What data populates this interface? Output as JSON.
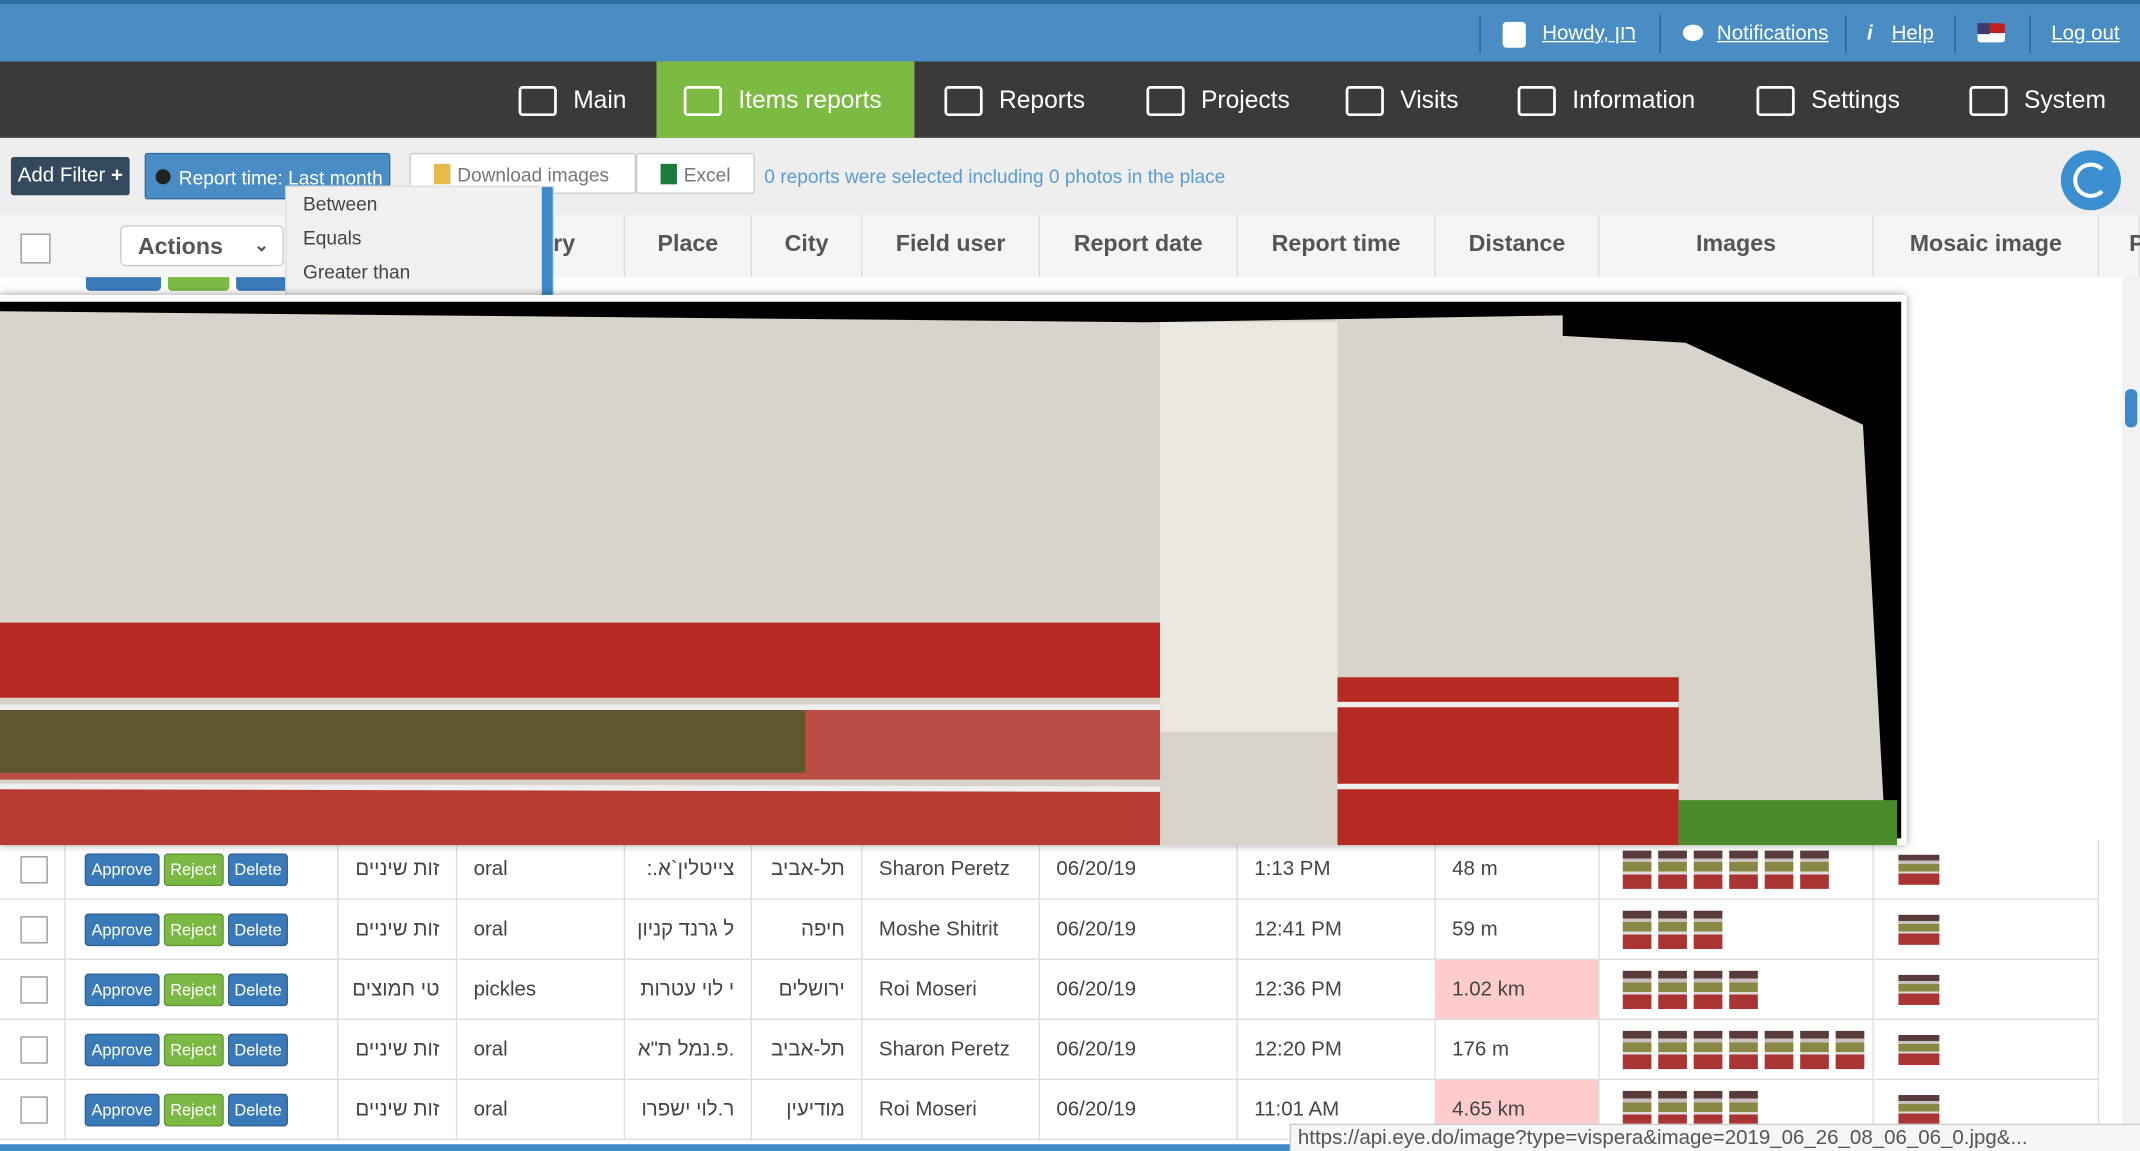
{
  "topbar": {
    "user": "Howdy, רון",
    "notifications": "Notifications",
    "help": "Help",
    "logout": "Log out"
  },
  "nav": [
    "Main",
    "Items reports",
    "Reports",
    "Projects",
    "Visits",
    "Information",
    "Settings",
    "System"
  ],
  "toolbar": {
    "add_filter": "Add Filter",
    "filter": "Report time: Last month",
    "download": "Download images",
    "excel": "Excel",
    "status": "0 reports were selected including 0 photos in the place"
  },
  "dropdown": [
    "Between",
    "Equals",
    "Greater than"
  ],
  "table": {
    "actions": "Actions",
    "headers": [
      "ory",
      "Place",
      "City",
      "Field user",
      "Report date",
      "Report time",
      "Distance",
      "Images",
      "Mosaic image",
      "P"
    ],
    "buttons": {
      "approve": "Approve",
      "reject": "Reject",
      "delete": "Delete"
    },
    "rows": [
      {
        "category": "זות שיניים",
        "subcategory": "oral",
        "place": "צייטלין`א.:",
        "city": "תל-אביב",
        "user": "Sharon Peretz",
        "date": "06/20/19",
        "time": "1:13 PM",
        "distance": "48 m",
        "alert": false,
        "thumbs": 6
      },
      {
        "category": "זות שיניים",
        "subcategory": "oral",
        "place": "ל גרנד קניון",
        "city": "חיפה",
        "user": "Moshe Shitrit",
        "date": "06/20/19",
        "time": "12:41 PM",
        "distance": "59 m",
        "alert": false,
        "thumbs": 3
      },
      {
        "category": "טי חמוצים",
        "subcategory": "pickles",
        "place": "י לוי עטרות",
        "city": "ירושלים",
        "user": "Roi Moseri",
        "date": "06/20/19",
        "time": "12:36 PM",
        "distance": "1.02 km",
        "alert": true,
        "thumbs": 4
      },
      {
        "category": "זות שיניים",
        "subcategory": "oral",
        "place": ".פ.נמל ת\"א",
        "city": "תל-אביב",
        "user": "Sharon Peretz",
        "date": "06/20/19",
        "time": "12:20 PM",
        "distance": "176 m",
        "alert": false,
        "thumbs": 7
      },
      {
        "category": "זות שיניים",
        "subcategory": "oral",
        "place": "ר.לוי ישפרו",
        "city": "מודיעין",
        "user": "Roi Moseri",
        "date": "06/20/19",
        "time": "11:01 AM",
        "distance": "4.65 km",
        "alert": true,
        "thumbs": 4
      }
    ]
  },
  "status_url": "https://api.eye.do/image?type=vispera&image=2019_06_26_08_06_06_0.jpg&..."
}
